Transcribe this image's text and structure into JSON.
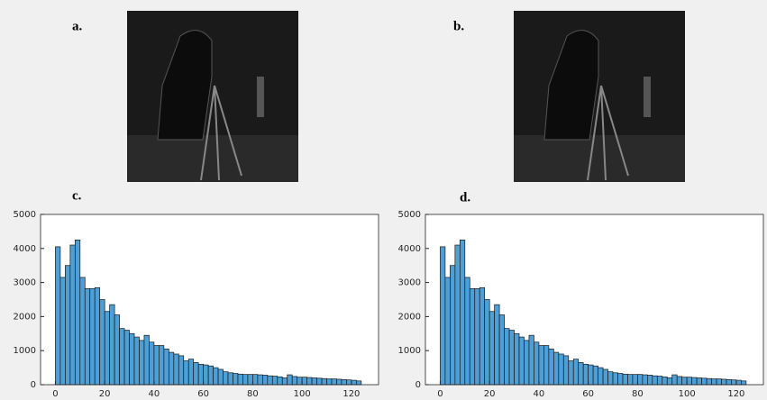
{
  "images": [
    {
      "label": "a."
    },
    {
      "label": "b."
    }
  ],
  "chart_data": [
    {
      "type": "histogram",
      "title": "c.",
      "color": "#4d9fd6",
      "bins": [
        0,
        2,
        4,
        6,
        8,
        10,
        12,
        14,
        16,
        18,
        20,
        22,
        24,
        26,
        28,
        30,
        32,
        34,
        36,
        38,
        40,
        42,
        44,
        46,
        48,
        50,
        52,
        54,
        56,
        58,
        60,
        62,
        64,
        66,
        68,
        70,
        72,
        74,
        76,
        78,
        80,
        82,
        84,
        86,
        88,
        90,
        92,
        94,
        96,
        98,
        100,
        102,
        104,
        106,
        108,
        110,
        112,
        114,
        116,
        118,
        120,
        122,
        124
      ],
      "values": [
        4050,
        3150,
        3500,
        4100,
        4250,
        3150,
        2820,
        2820,
        2850,
        2500,
        2150,
        2350,
        2050,
        1650,
        1600,
        1500,
        1400,
        1300,
        1450,
        1250,
        1150,
        1150,
        1050,
        950,
        900,
        850,
        700,
        750,
        650,
        600,
        580,
        550,
        500,
        450,
        380,
        350,
        330,
        310,
        300,
        300,
        300,
        290,
        280,
        260,
        250,
        230,
        200,
        290,
        240,
        220,
        220,
        210,
        200,
        190,
        180,
        170,
        170,
        160,
        150,
        140,
        130,
        110
      ],
      "xlim": [
        -6,
        131
      ],
      "ylim": [
        0,
        5000
      ],
      "xticks": [
        0,
        20,
        40,
        60,
        80,
        100,
        120
      ],
      "yticks": [
        0,
        1000,
        2000,
        3000,
        4000,
        5000
      ]
    },
    {
      "type": "histogram",
      "title": "d.",
      "color": "#4d9fd6",
      "bins": [
        0,
        2,
        4,
        6,
        8,
        10,
        12,
        14,
        16,
        18,
        20,
        22,
        24,
        26,
        28,
        30,
        32,
        34,
        36,
        38,
        40,
        42,
        44,
        46,
        48,
        50,
        52,
        54,
        56,
        58,
        60,
        62,
        64,
        66,
        68,
        70,
        72,
        74,
        76,
        78,
        80,
        82,
        84,
        86,
        88,
        90,
        92,
        94,
        96,
        98,
        100,
        102,
        104,
        106,
        108,
        110,
        112,
        114,
        116,
        118,
        120,
        122,
        124
      ],
      "values": [
        4050,
        3150,
        3500,
        4100,
        4250,
        3150,
        2820,
        2820,
        2850,
        2500,
        2150,
        2350,
        2050,
        1650,
        1600,
        1500,
        1400,
        1300,
        1450,
        1250,
        1150,
        1150,
        1050,
        950,
        900,
        850,
        700,
        750,
        650,
        600,
        580,
        550,
        500,
        450,
        380,
        350,
        330,
        310,
        300,
        300,
        300,
        290,
        280,
        260,
        250,
        230,
        200,
        290,
        240,
        220,
        220,
        210,
        200,
        190,
        180,
        170,
        170,
        160,
        150,
        140,
        130,
        110
      ],
      "xlim": [
        -6,
        131
      ],
      "ylim": [
        0,
        5000
      ],
      "xticks": [
        0,
        20,
        40,
        60,
        80,
        100,
        120
      ],
      "yticks": [
        0,
        1000,
        2000,
        3000,
        4000,
        5000
      ]
    }
  ]
}
